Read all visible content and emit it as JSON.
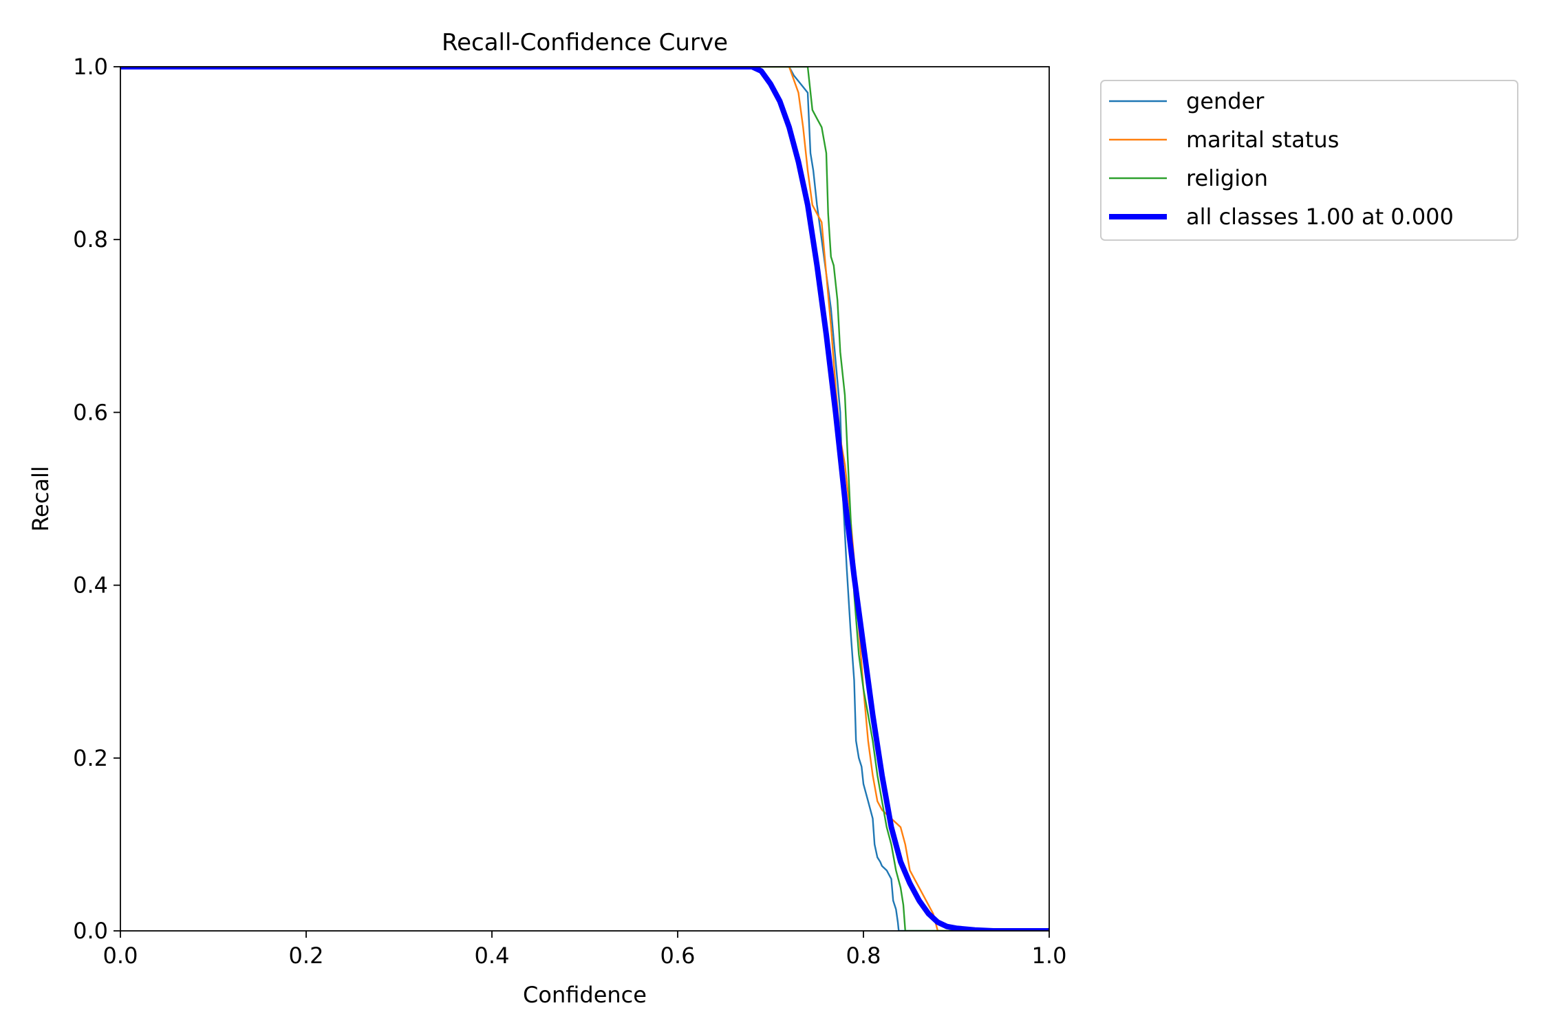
{
  "chart_data": {
    "type": "line",
    "title": "Recall-Confidence Curve",
    "xlabel": "Confidence",
    "ylabel": "Recall",
    "xlim": [
      0.0,
      1.0
    ],
    "ylim": [
      0.0,
      1.0
    ],
    "xticks": [
      "0.0",
      "0.2",
      "0.4",
      "0.6",
      "0.8",
      "1.0"
    ],
    "yticks": [
      "0.0",
      "0.2",
      "0.4",
      "0.6",
      "0.8",
      "1.0"
    ],
    "grid": false,
    "legend_position": "outside upper right",
    "series": [
      {
        "name": "gender",
        "color": "#1f77b4",
        "x": [
          0.0,
          0.72,
          0.725,
          0.74,
          0.743,
          0.746,
          0.75,
          0.755,
          0.76,
          0.765,
          0.77,
          0.775,
          0.778,
          0.782,
          0.786,
          0.79,
          0.792,
          0.795,
          0.798,
          0.8,
          0.805,
          0.81,
          0.812,
          0.815,
          0.818,
          0.82,
          0.825,
          0.83,
          0.832,
          0.835,
          0.837,
          0.838,
          1.0
        ],
        "y": [
          1.0,
          1.0,
          0.99,
          0.97,
          0.9,
          0.88,
          0.84,
          0.8,
          0.76,
          0.72,
          0.66,
          0.6,
          0.5,
          0.42,
          0.35,
          0.29,
          0.22,
          0.2,
          0.19,
          0.17,
          0.15,
          0.13,
          0.1,
          0.085,
          0.08,
          0.075,
          0.07,
          0.06,
          0.035,
          0.025,
          0.01,
          0.0,
          0.0
        ]
      },
      {
        "name": "marital status",
        "color": "#ff7f0e",
        "x": [
          0.0,
          0.72,
          0.73,
          0.735,
          0.74,
          0.745,
          0.75,
          0.755,
          0.76,
          0.765,
          0.77,
          0.775,
          0.78,
          0.785,
          0.79,
          0.795,
          0.8,
          0.805,
          0.81,
          0.815,
          0.82,
          0.83,
          0.84,
          0.845,
          0.85,
          0.86,
          0.87,
          0.875,
          0.88,
          1.0
        ],
        "y": [
          1.0,
          1.0,
          0.97,
          0.93,
          0.88,
          0.84,
          0.83,
          0.82,
          0.76,
          0.7,
          0.63,
          0.57,
          0.54,
          0.49,
          0.43,
          0.35,
          0.28,
          0.22,
          0.18,
          0.15,
          0.14,
          0.13,
          0.12,
          0.1,
          0.07,
          0.05,
          0.03,
          0.02,
          0.0,
          0.0
        ]
      },
      {
        "name": "religion",
        "color": "#2ca02c",
        "x": [
          0.0,
          0.74,
          0.745,
          0.75,
          0.755,
          0.76,
          0.762,
          0.765,
          0.768,
          0.772,
          0.775,
          0.78,
          0.783,
          0.787,
          0.79,
          0.795,
          0.8,
          0.805,
          0.81,
          0.815,
          0.82,
          0.825,
          0.83,
          0.835,
          0.84,
          0.843,
          0.845,
          1.0
        ],
        "y": [
          1.0,
          1.0,
          0.95,
          0.94,
          0.93,
          0.9,
          0.83,
          0.78,
          0.77,
          0.73,
          0.67,
          0.62,
          0.55,
          0.46,
          0.39,
          0.32,
          0.28,
          0.25,
          0.22,
          0.18,
          0.15,
          0.12,
          0.1,
          0.07,
          0.05,
          0.03,
          0.0,
          0.0
        ]
      },
      {
        "name": "all classes 1.00 at 0.000",
        "color": "#0000ff",
        "x": [
          0.0,
          0.68,
          0.69,
          0.7,
          0.71,
          0.72,
          0.73,
          0.74,
          0.75,
          0.76,
          0.77,
          0.78,
          0.79,
          0.8,
          0.81,
          0.82,
          0.83,
          0.84,
          0.85,
          0.86,
          0.87,
          0.88,
          0.89,
          0.9,
          0.92,
          0.94,
          0.96,
          1.0
        ],
        "y": [
          1.0,
          1.0,
          0.995,
          0.98,
          0.96,
          0.93,
          0.89,
          0.84,
          0.77,
          0.69,
          0.6,
          0.5,
          0.41,
          0.33,
          0.25,
          0.18,
          0.12,
          0.08,
          0.055,
          0.035,
          0.02,
          0.01,
          0.005,
          0.003,
          0.001,
          0.0,
          0.0,
          0.0
        ]
      }
    ]
  }
}
